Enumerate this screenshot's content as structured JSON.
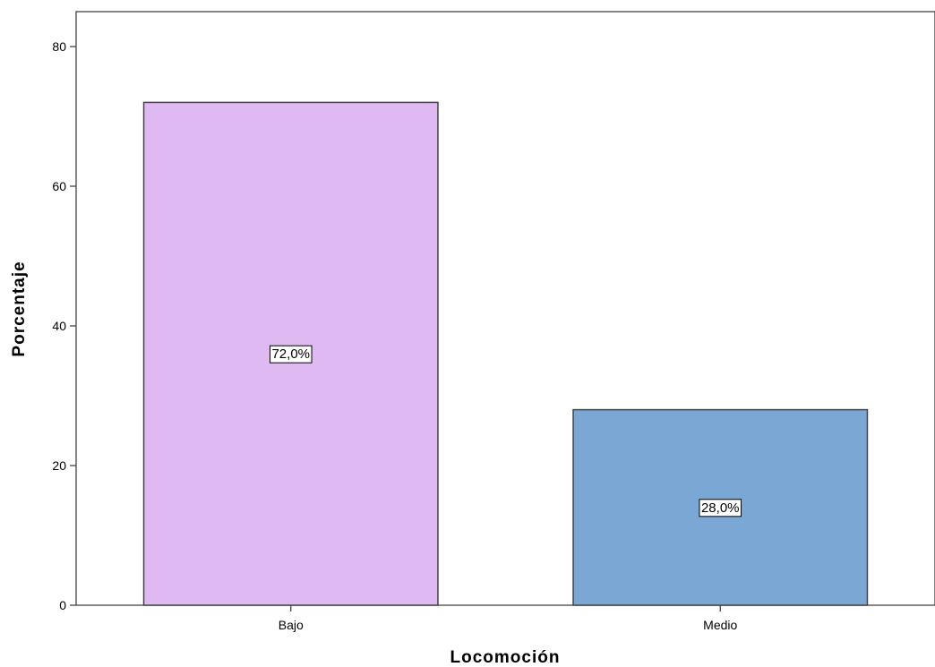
{
  "chart_data": {
    "type": "bar",
    "title": "",
    "xlabel": "Locomoción",
    "ylabel": "Porcentaje",
    "categories": [
      "Bajo",
      "Medio"
    ],
    "values": [
      72.0,
      28.0
    ],
    "data_labels": [
      "72,0%",
      "28,0%"
    ],
    "bar_colors": [
      "#dfb9f2",
      "#7ba7d4"
    ],
    "ylim": [
      0,
      85
    ],
    "yticks": [
      0,
      20,
      40,
      60,
      80
    ],
    "grid": false,
    "legend": "none"
  }
}
